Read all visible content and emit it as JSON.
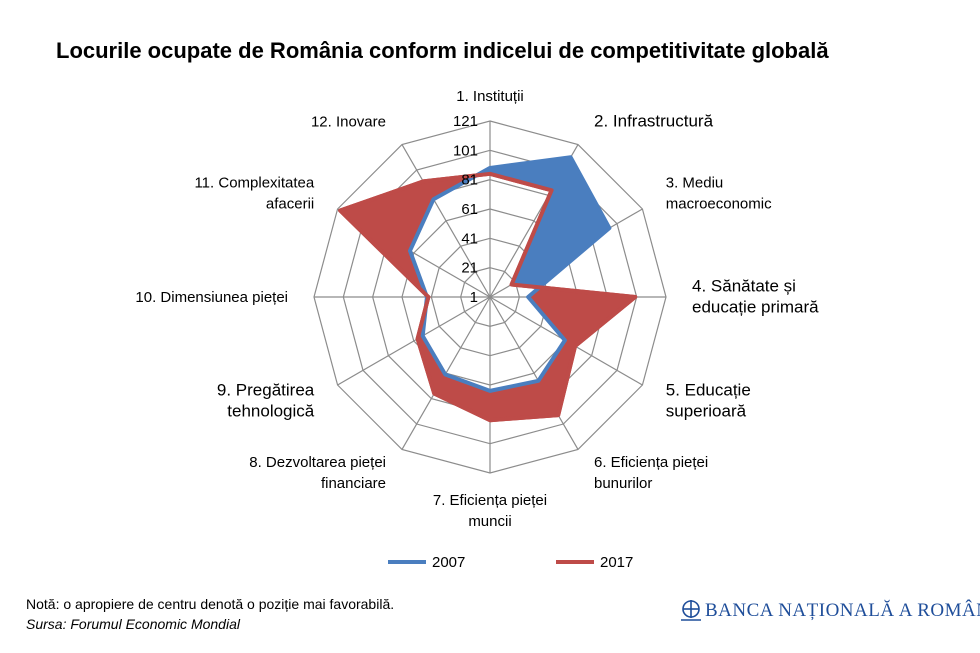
{
  "chart_data": {
    "type": "radar",
    "title": "Locurile ocupate de România conform indicelui de competitivitate globală",
    "categories": [
      [
        "1. Instituții"
      ],
      [
        "2. Infrastructură"
      ],
      [
        "3. Mediu",
        "macroeconomic"
      ],
      [
        "4. Sănătate și",
        "educație primară"
      ],
      [
        "5. Educație",
        "superioară"
      ],
      [
        "6. Eficiența pieței",
        "bunurilor"
      ],
      [
        "7. Eficiența pieței",
        "muncii"
      ],
      [
        "8. Dezvoltarea pieței",
        "financiare"
      ],
      [
        "9. Pregătirea",
        "tehnologică"
      ],
      [
        "10. Dimensiunea pieței"
      ],
      [
        "11. Complexitatea",
        "afacerii"
      ],
      [
        "12. Inovare"
      ]
    ],
    "r_axis": {
      "min": 1,
      "max": 121,
      "ticks": [
        "1",
        "21",
        "41",
        "61",
        "81",
        "101",
        "121"
      ]
    },
    "series": [
      {
        "name": "2007",
        "color": "#4a7ebf",
        "values": [
          89,
          111,
          95,
          27,
          60,
          67,
          65,
          62,
          54,
          44,
          64,
          78
        ]
      },
      {
        "name": "2017",
        "color": "#be4b48",
        "values": [
          85,
          85,
          18,
          100,
          68,
          94,
          85,
          77,
          58,
          43,
          119,
          92
        ]
      }
    ],
    "legend_position": "bottom",
    "grid": true
  },
  "footer": {
    "note": "Notă: o apropiere de centru denotă o poziție mai favorabilă.",
    "source": "Sursa: Forumul Economic Mondial",
    "brand": "BANCA NAȚIONALĂ A ROMÂNIEI"
  }
}
